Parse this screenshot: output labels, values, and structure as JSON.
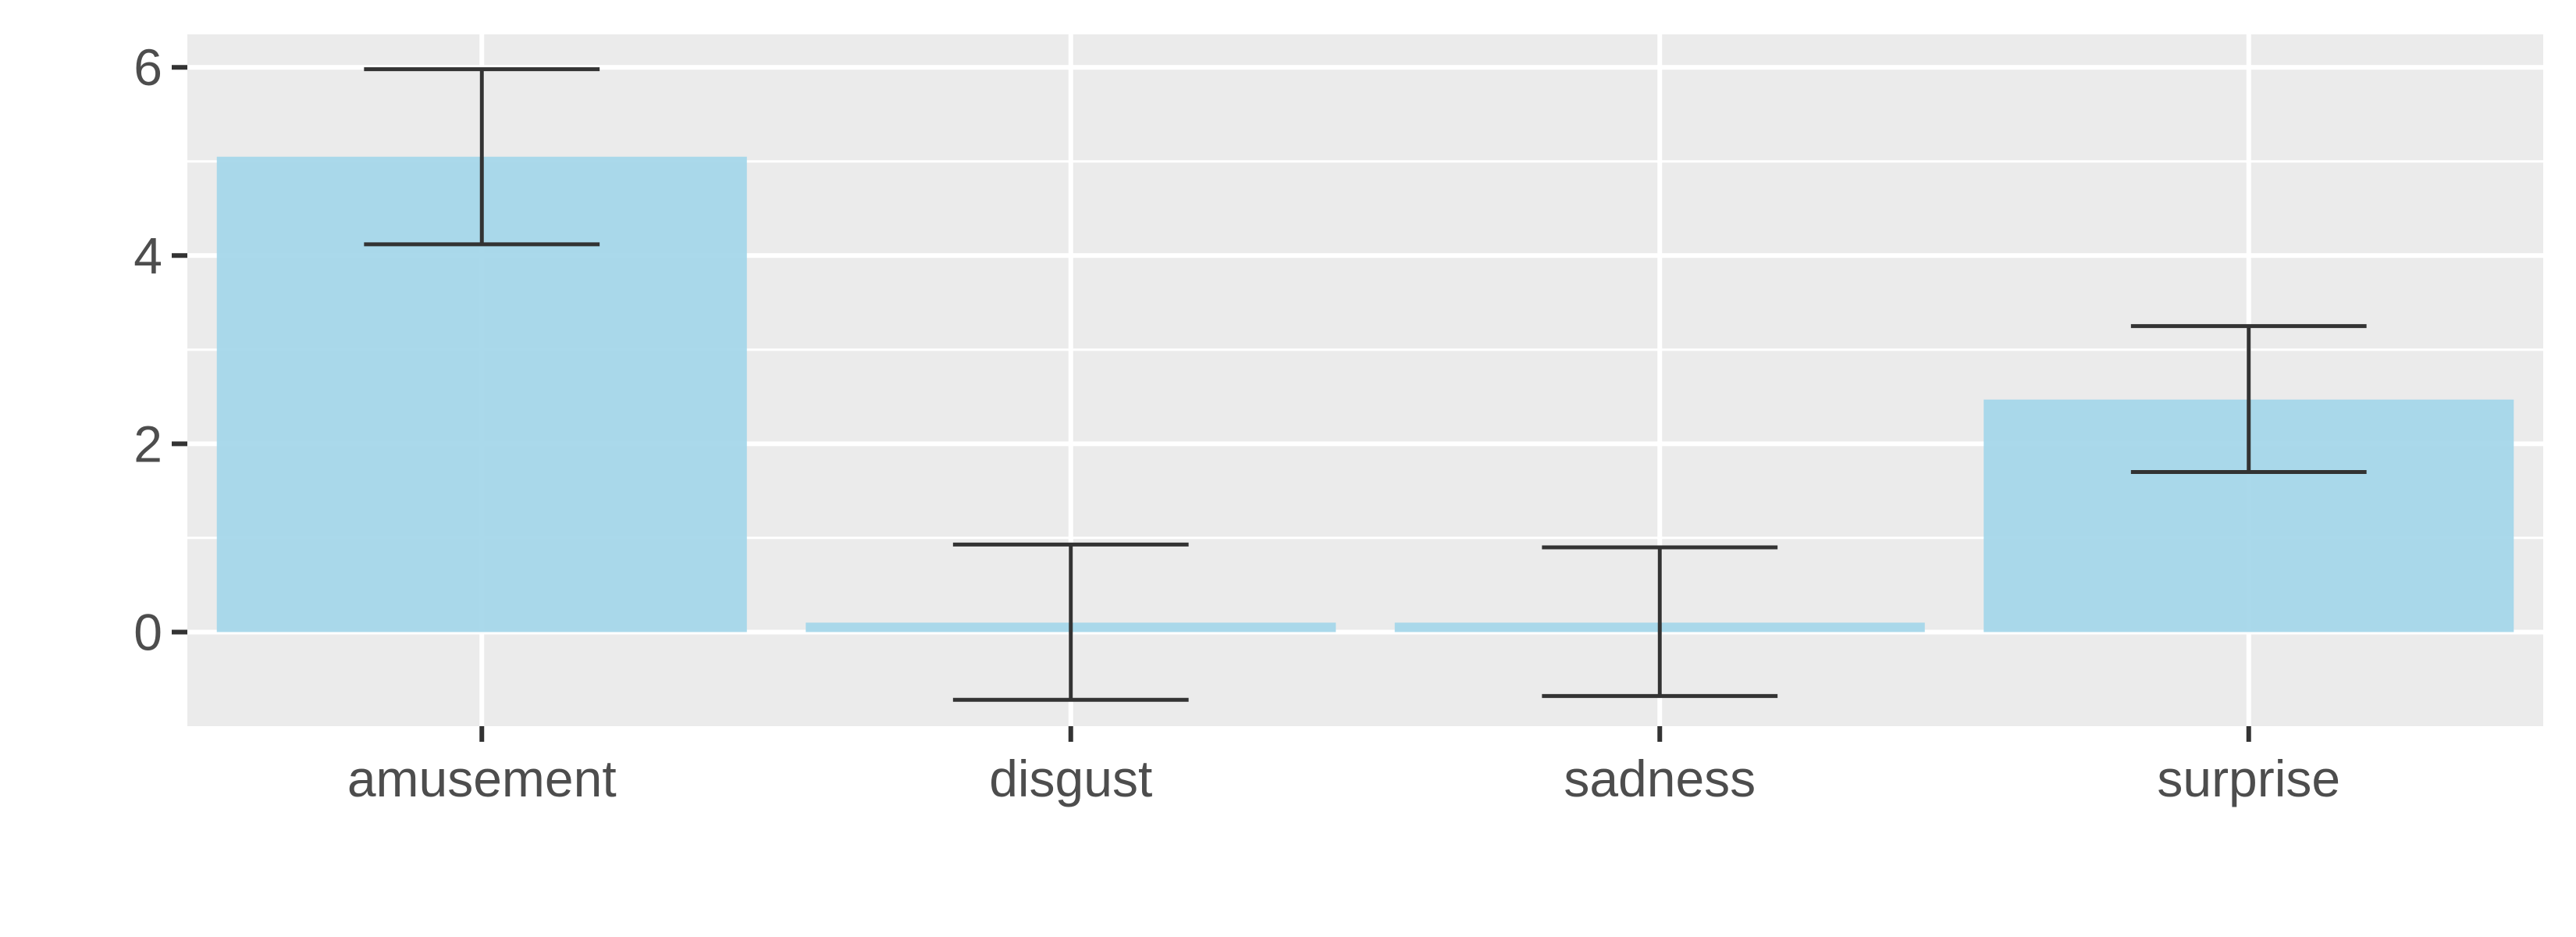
{
  "chart_data": {
    "type": "bar",
    "categories": [
      "amusement",
      "disgust",
      "sadness",
      "surprise"
    ],
    "values": [
      5.05,
      0.1,
      0.1,
      2.47
    ],
    "error_low": [
      4.12,
      -0.72,
      -0.68,
      1.7
    ],
    "error_high": [
      5.98,
      0.93,
      0.9,
      3.25
    ],
    "title": "",
    "xlabel": "",
    "ylabel": "",
    "ylim": [
      -1.0,
      6.35
    ],
    "yticks": [
      0,
      2,
      4,
      6
    ],
    "grid": true,
    "legend": "none",
    "bar_color": "#a5d7ea",
    "errorbar_color": "#333333",
    "panel_color": "#ebebeb"
  }
}
